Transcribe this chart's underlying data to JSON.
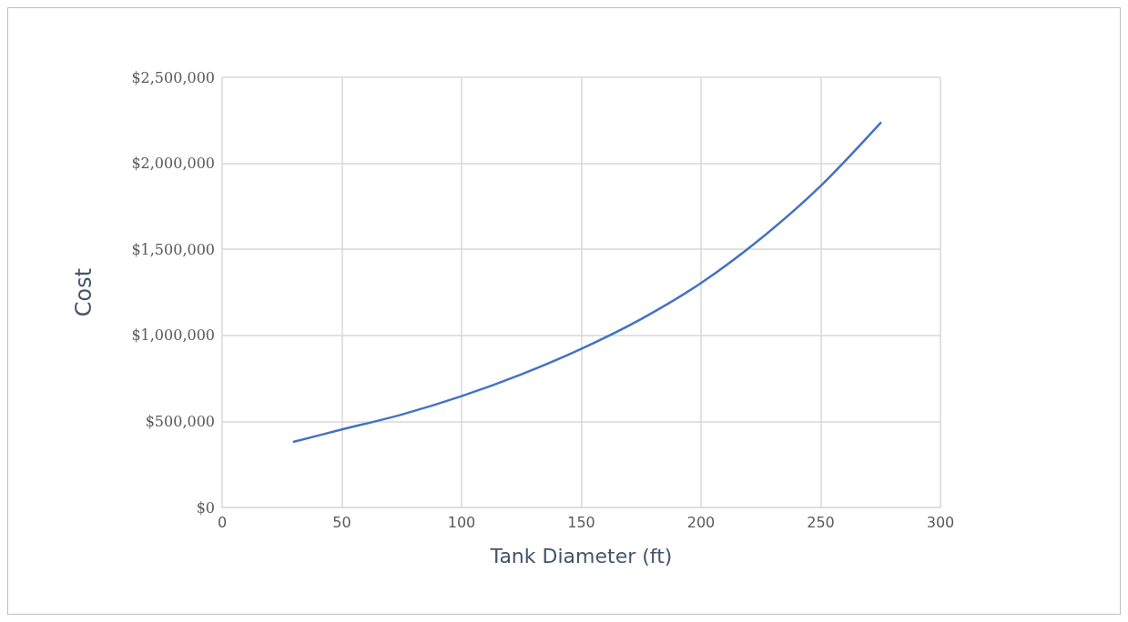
{
  "chart_data": {
    "type": "line",
    "xlabel": "Tank Diameter (ft)",
    "ylabel": "Cost",
    "series": [
      {
        "color": "#4472c4",
        "x": [
          30,
          50,
          75,
          100,
          125,
          150,
          175,
          200,
          225,
          250,
          275
        ],
        "values": [
          382000,
          453000,
          540000,
          647000,
          774000,
          922000,
          1095000,
          1304000,
          1563000,
          1869000,
          2235000
        ]
      }
    ],
    "xlim": [
      0,
      300
    ],
    "xticks": [
      0,
      50,
      100,
      150,
      200,
      250,
      300
    ],
    "ylim": [
      0,
      2500000
    ],
    "yticks": [
      {
        "value": 0,
        "label": "$0"
      },
      {
        "value": 500000,
        "label": "$500,000"
      },
      {
        "value": 1000000,
        "label": "$1,000,000"
      },
      {
        "value": 1500000,
        "label": "$1,500,000"
      },
      {
        "value": 2000000,
        "label": "$2,000,000"
      },
      {
        "value": 2500000,
        "label": "$2,500,000"
      }
    ],
    "grid": true,
    "marker": "none",
    "line_style": "solid"
  }
}
